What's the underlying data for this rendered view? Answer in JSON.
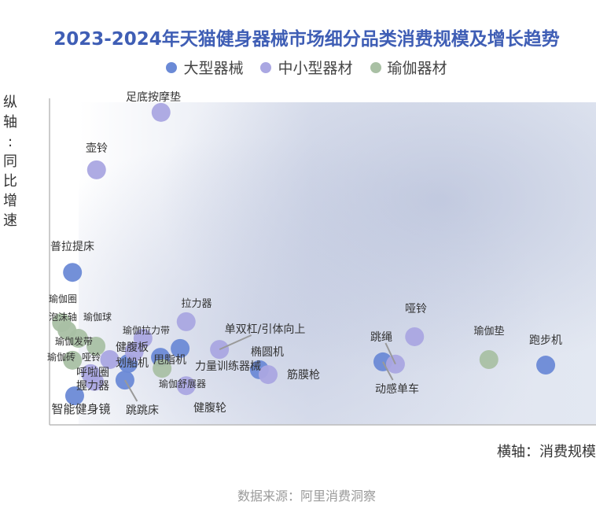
{
  "chart_data": {
    "type": "scatter",
    "title": "2023-2024年天猫健身器械市场细分品类消费规模及增长趋势",
    "xlabel": "横轴：消费规模",
    "ylabel": "纵轴：同比增速",
    "source": "数据来源：阿里消费洞察",
    "axis_ticks_shown": false,
    "xlim": [
      0,
      100
    ],
    "ylim": [
      0,
      100
    ],
    "legend_position": "top",
    "series": [
      {
        "name": "大型器械",
        "color": "#6b8ad6",
        "points": [
          {
            "label": "普拉提床",
            "x": 4.2,
            "y": 46.7
          },
          {
            "label": "智能健身镜",
            "x": 4.6,
            "y": 8.9
          },
          {
            "label": "跳跳床",
            "x": 13.8,
            "y": 13.7
          },
          {
            "label": "划船机",
            "x": 14.4,
            "y": 18.8
          },
          {
            "label": "甩脂机",
            "x": 20.3,
            "y": 20.7
          },
          {
            "label": "力量训练器械",
            "x": 23.9,
            "y": 23.4
          },
          {
            "label": "椭圆机",
            "x": 38.4,
            "y": 16.9
          },
          {
            "label": "动感单车",
            "x": 61.0,
            "y": 19.3
          },
          {
            "label": "跑步机",
            "x": 90.8,
            "y": 18.3
          }
        ]
      },
      {
        "name": "中小型器材",
        "color": "#aaa7e2",
        "points": [
          {
            "label": "足底按摩垫",
            "x": 20.4,
            "y": 95.7
          },
          {
            "label": "壶铃",
            "x": 8.6,
            "y": 78.1
          },
          {
            "label": "拉力器",
            "x": 25.0,
            "y": 31.6
          },
          {
            "label": "单双杠/引体向上",
            "x": 31.1,
            "y": 23.1
          },
          {
            "label": "筋膜枪",
            "x": 40.0,
            "y": 15.4
          },
          {
            "label": "哑铃",
            "x": 66.8,
            "y": 27.0
          },
          {
            "label": "跳绳",
            "x": 63.3,
            "y": 18.6
          },
          {
            "label": "健腹轮",
            "x": 25.0,
            "y": 12.0
          },
          {
            "label": "瑜伽拉力带",
            "x": 17.1,
            "y": 26.5
          },
          {
            "label": "健腹板",
            "x": 15.5,
            "y": 22.5
          },
          {
            "label": "呼啦圈",
            "x": 7.5,
            "y": 15.7
          },
          {
            "label": "握力器",
            "x": 8.2,
            "y": 13.3
          },
          {
            "label": "哑铃",
            "x": 11.0,
            "y": 20.0
          }
        ]
      },
      {
        "name": "瑜伽器材",
        "color": "#a9c0a4",
        "points": [
          {
            "label": "瑜伽圈",
            "x": 2.2,
            "y": 31.3
          },
          {
            "label": "泡沫轴",
            "x": 3.2,
            "y": 28.9
          },
          {
            "label": "瑜伽球",
            "x": 5.3,
            "y": 26.5
          },
          {
            "label": "瑜伽发带",
            "x": 8.5,
            "y": 24.1
          },
          {
            "label": "瑜伽砖",
            "x": 4.2,
            "y": 19.8
          },
          {
            "label": "瑜伽舒展器",
            "x": 20.6,
            "y": 17.3
          },
          {
            "label": "瑜伽垫",
            "x": 80.4,
            "y": 20.0
          }
        ]
      }
    ]
  }
}
